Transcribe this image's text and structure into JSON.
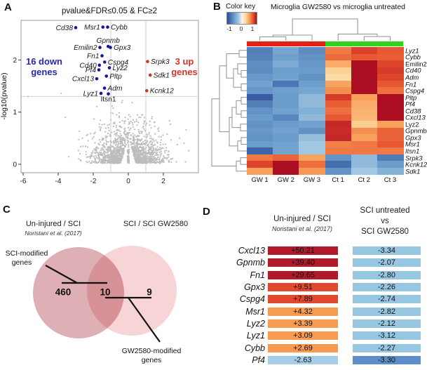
{
  "panel_labels": {
    "a": "A",
    "b": "B",
    "c": "C",
    "d": "D"
  },
  "chart_data": [
    {
      "id": "volcano",
      "type": "scatter",
      "title": "pvalue&FDR≤0.05 & FC≥2",
      "ylabel": "-log10(pvalue)",
      "xticks": [
        -6,
        -4,
        -2,
        0,
        2
      ],
      "yticks": [
        0,
        1,
        2
      ],
      "xlim": [
        -6.12,
        4.0
      ],
      "ylim": [
        -0.16,
        2.76
      ],
      "threshold_lines": {
        "vertical_x": [
          -1,
          1
        ],
        "horizontal_y": [
          1.3
        ]
      },
      "down_label": {
        "line1": "16 down",
        "line2": "genes",
        "color": "#2727ad"
      },
      "up_label": {
        "line1": "3 up",
        "line2": "genes",
        "color": "#cf352c"
      },
      "down_gene_color": "#16169b",
      "up_gene_color": "#bf3a2b",
      "gene_label_color": "#1a1a1a",
      "background_point_color": "#bcbcbc",
      "background_points": {
        "count": 1500,
        "seed": 12345,
        "note": "non-significant genes (gray cloud), |log2FC| mostly < 2 and -log10(p) < 1.3"
      },
      "down_genes": [
        {
          "name": "Cd38",
          "x": -3.0,
          "y": 2.62,
          "side": "left"
        },
        {
          "name": "Msr1",
          "x": -1.45,
          "y": 2.63,
          "side": "left"
        },
        {
          "name": "Cybb",
          "x": -1.18,
          "y": 2.63,
          "side": "right"
        },
        {
          "name": "Gpnmb",
          "x": -1.15,
          "y": 2.26,
          "side": "above"
        },
        {
          "name": "Emilin2",
          "x": -1.62,
          "y": 2.24,
          "side": "left"
        },
        {
          "name": "Gpx3",
          "x": -1.02,
          "y": 2.24,
          "side": "right"
        },
        {
          "name": "Fn1",
          "x": -1.5,
          "y": 2.08,
          "side": "left"
        },
        {
          "name": "Cspg4",
          "x": -1.35,
          "y": 1.96,
          "side": "right"
        },
        {
          "name": "Cd40",
          "x": -1.65,
          "y": 1.9,
          "side": "left"
        },
        {
          "name": "Lyz2",
          "x": -1.08,
          "y": 1.85,
          "side": "right"
        },
        {
          "name": "Pf4",
          "x": -1.68,
          "y": 1.81,
          "side": "left"
        },
        {
          "name": "Pltp",
          "x": -1.25,
          "y": 1.69,
          "side": "right"
        },
        {
          "name": "Cxcl13",
          "x": -1.8,
          "y": 1.64,
          "side": "left"
        },
        {
          "name": "Adm",
          "x": -1.36,
          "y": 1.46,
          "side": "right"
        },
        {
          "name": "Lyz1",
          "x": -1.56,
          "y": 1.36,
          "side": "left"
        },
        {
          "name": "Itsn1",
          "x": -1.14,
          "y": 1.35,
          "side": "below",
          "italic": false
        }
      ],
      "up_genes": [
        {
          "name": "Srpk3",
          "x": 1.1,
          "y": 1.97,
          "side": "right"
        },
        {
          "name": "Sdk1",
          "x": 1.25,
          "y": 1.71,
          "side": "right"
        },
        {
          "name": "Kcnk12",
          "x": 1.05,
          "y": 1.41,
          "side": "right"
        }
      ]
    },
    {
      "id": "heatmap",
      "type": "heatmap",
      "title": "Microglia GW2580 vs microglia untreated",
      "color_key": {
        "label": "Color key",
        "ticks": [
          "-1",
          "0",
          "1"
        ]
      },
      "columns": [
        "GW 1",
        "GW 2",
        "GW 3",
        "Ct 1",
        "Ct 2",
        "Ct 3"
      ],
      "column_group_colors": [
        "#e71f13",
        "#2fd41a"
      ],
      "value_range": [
        -1,
        1
      ],
      "rows": [
        {
          "name": "Lyz1",
          "italic": true,
          "values": [
            -0.7,
            -0.45,
            -0.62,
            0.62,
            0.8,
            0.72
          ]
        },
        {
          "name": "Cybb",
          "italic": true,
          "values": [
            -0.68,
            -0.5,
            -0.58,
            0.66,
            0.72,
            0.7
          ]
        },
        {
          "name": "Emilin2",
          "italic": false,
          "values": [
            -0.6,
            -0.42,
            -0.55,
            0.45,
            1.0,
            0.78
          ]
        },
        {
          "name": "Cd40",
          "italic": true,
          "values": [
            -0.62,
            -0.5,
            -0.52,
            0.28,
            1.0,
            0.82
          ]
        },
        {
          "name": "Adm",
          "italic": true,
          "values": [
            -0.55,
            -0.48,
            -0.58,
            0.22,
            1.0,
            0.78
          ]
        },
        {
          "name": "Fn1",
          "italic": true,
          "values": [
            -0.48,
            -0.75,
            -0.5,
            0.48,
            1.0,
            0.72
          ]
        },
        {
          "name": "Cspg4",
          "italic": true,
          "values": [
            -0.55,
            -0.5,
            -0.45,
            0.55,
            1.0,
            0.65
          ]
        },
        {
          "name": "Pltp",
          "italic": true,
          "values": [
            -0.9,
            -0.52,
            -0.32,
            0.82,
            0.5,
            1.0
          ]
        },
        {
          "name": "Pf4",
          "italic": true,
          "values": [
            -0.7,
            -0.52,
            -0.32,
            0.7,
            0.45,
            1.0
          ]
        },
        {
          "name": "Cd38",
          "italic": true,
          "values": [
            -0.58,
            -0.48,
            -0.38,
            0.65,
            0.42,
            1.0
          ]
        },
        {
          "name": "Cxcl13",
          "italic": true,
          "values": [
            -0.52,
            -0.65,
            -0.32,
            0.72,
            0.4,
            1.0
          ]
        },
        {
          "name": "Lyz2",
          "italic": false,
          "values": [
            -0.58,
            -0.52,
            -0.48,
            0.9,
            0.3,
            0.5
          ]
        },
        {
          "name": "Gpnmb",
          "italic": false,
          "values": [
            -0.55,
            -0.48,
            -0.58,
            0.88,
            0.55,
            0.68
          ]
        },
        {
          "name": "Gpx3",
          "italic": true,
          "values": [
            -0.58,
            -0.52,
            -0.28,
            0.9,
            0.5,
            0.68
          ]
        },
        {
          "name": "Msr1",
          "italic": true,
          "values": [
            -0.52,
            -0.48,
            -0.22,
            0.6,
            0.62,
            0.72
          ]
        },
        {
          "name": "Itsn1",
          "italic": true,
          "values": [
            -0.85,
            -0.48,
            -0.22,
            0.62,
            0.62,
            0.62
          ]
        },
        {
          "name": "Srpk3",
          "italic": true,
          "values": [
            0.62,
            0.68,
            0.48,
            -0.58,
            -0.32,
            -0.72
          ]
        },
        {
          "name": "Kcnk12",
          "italic": true,
          "values": [
            0.78,
            1.0,
            0.65,
            -0.8,
            -0.32,
            -0.52
          ]
        },
        {
          "name": "Sdk1",
          "italic": true,
          "values": [
            0.5,
            1.0,
            0.52,
            -0.58,
            -0.22,
            -0.38
          ]
        }
      ]
    },
    {
      "id": "venn",
      "type": "venn",
      "left_title": "Un-injured / SCI",
      "left_subtitle": "Noristani et al. (2017)",
      "right_title": "SCI / SCI GW2580",
      "left_only": "460",
      "intersection": "10",
      "right_only": "9",
      "left_callout_line1": "SCI-modified",
      "left_callout_line2": "genes",
      "right_callout_line1": "GW2580-modified",
      "right_callout_line2": "genes",
      "left_fill": "#c97f88",
      "right_fill": "#f2b9bd"
    },
    {
      "id": "fold_change_table",
      "type": "table",
      "col1_header": "Un-injured / SCI",
      "col1_subheader": "Noristani et al. (2017)",
      "col2_header_line1": "SCI untreated",
      "col2_header_line2": "vs",
      "col2_header_line3": "SCI GW2580",
      "rows": [
        {
          "gene": "Cxcl13",
          "v1": "+50.21",
          "c1": "#b11a2b",
          "v2": "-3.34",
          "c2": "#97c6e0"
        },
        {
          "gene": "Gpnmb",
          "v1": "+39.40",
          "c1": "#b11a2b",
          "v2": "-2.07",
          "c2": "#97c6e0"
        },
        {
          "gene": "Fn1",
          "v1": "+29.65",
          "c1": "#b11a2b",
          "v2": "-2.80",
          "c2": "#97c6e0"
        },
        {
          "gene": "Gpx3",
          "v1": "+9.51",
          "c1": "#e2482e",
          "v2": "-2.26",
          "c2": "#97c6e0"
        },
        {
          "gene": "Cspg4",
          "v1": "+7.89",
          "c1": "#e2482e",
          "v2": "-2.74",
          "c2": "#97c6e0"
        },
        {
          "gene": "Msr1",
          "v1": "+4.32",
          "c1": "#f79b52",
          "v2": "-2.82",
          "c2": "#97c6e0"
        },
        {
          "gene": "Lyz2",
          "v1": "+3.39",
          "c1": "#f79b52",
          "v2": "-2.12",
          "c2": "#97c6e0"
        },
        {
          "gene": "Lyz1",
          "v1": "+3.09",
          "c1": "#f79b52",
          "v2": "-3.12",
          "c2": "#97c6e0"
        },
        {
          "gene": "Cybb",
          "v1": "+2.69",
          "c1": "#f79b52",
          "v2": "-2.27",
          "c2": "#97c6e0"
        },
        {
          "gene": "Pf4",
          "v1": "-2.63",
          "c1": "#a6cee8",
          "v2": "-3.30",
          "c2": "#5f8dc9"
        }
      ]
    }
  ]
}
